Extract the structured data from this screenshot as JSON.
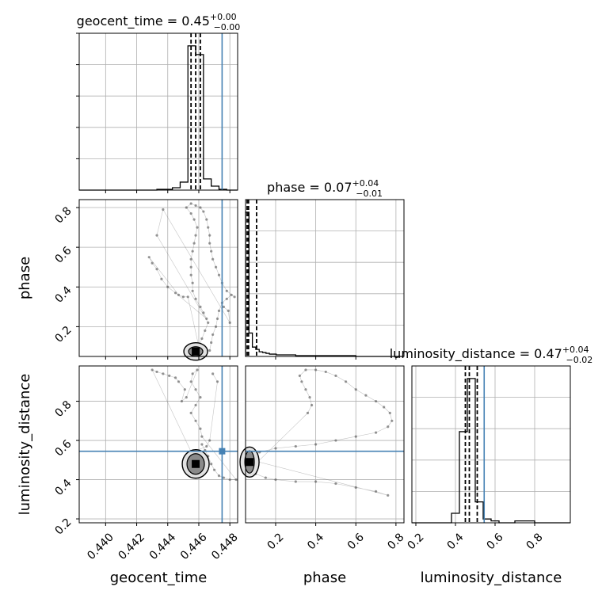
{
  "chart_data": {
    "type": "corner",
    "parameters": [
      "geocent_time",
      "phase",
      "luminosity_distance"
    ],
    "truths": {
      "geocent_time": 0.4475,
      "phase": null,
      "luminosity_distance": 0.545
    },
    "diagonal_titles": [
      {
        "param": "geocent_time",
        "text": "geocent_time = 0.45",
        "sup": "+0.00",
        "sub": "−0.00"
      },
      {
        "param": "phase",
        "text": "phase = 0.07",
        "sup": "+0.04",
        "sub": "−0.01"
      },
      {
        "param": "luminosity_distance",
        "text": "luminosity_distance = 0.47",
        "sup": "+0.04",
        "sub": "−0.02"
      }
    ],
    "axis_labels": {
      "x": [
        "geocent_time",
        "phase",
        "luminosity_distance"
      ],
      "y": [
        "phase",
        "luminosity_distance"
      ]
    },
    "ranges": {
      "geocent_time": [
        0.4383,
        0.4485
      ],
      "phase": [
        0.05,
        0.84
      ],
      "luminosity_distance": [
        0.18,
        0.98
      ]
    },
    "ticks": {
      "geocent_time": [
        "0.440",
        "0.442",
        "0.444",
        "0.446",
        "0.448"
      ],
      "phase": [
        "0.2",
        "0.4",
        "0.6",
        "0.8"
      ],
      "luminosity_distance": [
        "0.2",
        "0.4",
        "0.6",
        "0.8"
      ]
    },
    "histograms": {
      "geocent_time": {
        "edges": [
          0.4383,
          0.4433,
          0.4438,
          0.4443,
          0.4448,
          0.4453,
          0.4458,
          0.4463,
          0.4468,
          0.4473,
          0.4478,
          0.4485
        ],
        "counts": [
          0,
          1,
          1,
          3,
          10,
          181,
          170,
          14,
          5,
          1,
          0
        ]
      },
      "phase": {
        "edges": [
          0.05,
          0.067,
          0.084,
          0.101,
          0.118,
          0.135,
          0.152,
          0.169,
          0.186,
          0.203,
          0.22,
          0.3,
          0.4,
          0.5,
          0.6,
          0.7,
          0.84
        ],
        "counts": [
          185,
          30,
          12,
          9,
          6,
          5,
          4,
          3,
          3,
          2,
          2,
          1,
          1,
          1,
          0,
          0
        ]
      },
      "luminosity_distance": {
        "edges": [
          0.18,
          0.38,
          0.42,
          0.46,
          0.5,
          0.54,
          0.58,
          0.62,
          0.7,
          0.8,
          0.9,
          0.98
        ],
        "counts": [
          0,
          5,
          48,
          76,
          11,
          2,
          1,
          0,
          1,
          0,
          0
        ]
      }
    },
    "quantile_lines": {
      "geocent_time": [
        0.4455,
        0.4458,
        0.4461
      ],
      "phase": [
        0.058,
        0.065,
        0.105
      ],
      "luminosity_distance": [
        0.45,
        0.47,
        0.51
      ]
    },
    "scatter": {
      "phase_vs_geocent_time": [
        [
          0.4467,
          0.08
        ],
        [
          0.4468,
          0.12
        ],
        [
          0.4469,
          0.16
        ],
        [
          0.4471,
          0.2
        ],
        [
          0.4472,
          0.24
        ],
        [
          0.4473,
          0.28
        ],
        [
          0.4475,
          0.32
        ],
        [
          0.4478,
          0.34
        ],
        [
          0.4481,
          0.36
        ],
        [
          0.4483,
          0.35
        ],
        [
          0.4478,
          0.38
        ],
        [
          0.4475,
          0.42
        ],
        [
          0.4473,
          0.46
        ],
        [
          0.4471,
          0.5
        ],
        [
          0.4469,
          0.54
        ],
        [
          0.4468,
          0.58
        ],
        [
          0.4467,
          0.62
        ],
        [
          0.4467,
          0.66
        ],
        [
          0.4466,
          0.7
        ],
        [
          0.4465,
          0.74
        ],
        [
          0.4463,
          0.78
        ],
        [
          0.4461,
          0.8
        ],
        [
          0.4458,
          0.81
        ],
        [
          0.4455,
          0.82
        ],
        [
          0.4452,
          0.8
        ],
        [
          0.4455,
          0.77
        ],
        [
          0.4457,
          0.74
        ],
        [
          0.4459,
          0.7
        ],
        [
          0.4458,
          0.66
        ],
        [
          0.4457,
          0.62
        ],
        [
          0.4456,
          0.58
        ],
        [
          0.4455,
          0.54
        ],
        [
          0.4455,
          0.5
        ],
        [
          0.4455,
          0.46
        ],
        [
          0.4456,
          0.42
        ],
        [
          0.4456,
          0.38
        ],
        [
          0.4458,
          0.34
        ],
        [
          0.4461,
          0.3
        ],
        [
          0.4463,
          0.27
        ],
        [
          0.4465,
          0.24
        ],
        [
          0.4445,
          0.37
        ],
        [
          0.444,
          0.4
        ],
        [
          0.4436,
          0.44
        ],
        [
          0.4433,
          0.49
        ],
        [
          0.443,
          0.52
        ],
        [
          0.4428,
          0.55
        ],
        [
          0.4447,
          0.36
        ],
        [
          0.445,
          0.35
        ],
        [
          0.4453,
          0.35
        ],
        [
          0.446,
          0.1
        ],
        [
          0.4462,
          0.14
        ],
        [
          0.4464,
          0.18
        ],
        [
          0.4466,
          0.22
        ],
        [
          0.4433,
          0.66
        ],
        [
          0.4437,
          0.79
        ],
        [
          0.448,
          0.22
        ],
        [
          0.4479,
          0.28
        ],
        [
          0.4476,
          0.3
        ]
      ],
      "luminosity_distance_vs_geocent_time": [
        [
          0.4462,
          0.58
        ],
        [
          0.4464,
          0.55
        ],
        [
          0.4466,
          0.52
        ],
        [
          0.4468,
          0.48
        ],
        [
          0.447,
          0.45
        ],
        [
          0.4473,
          0.42
        ],
        [
          0.4476,
          0.41
        ],
        [
          0.448,
          0.4
        ],
        [
          0.4484,
          0.4
        ],
        [
          0.4462,
          0.62
        ],
        [
          0.4461,
          0.66
        ],
        [
          0.4458,
          0.7
        ],
        [
          0.4455,
          0.74
        ],
        [
          0.4458,
          0.78
        ],
        [
          0.4461,
          0.82
        ],
        [
          0.4458,
          0.86
        ],
        [
          0.4455,
          0.9
        ],
        [
          0.4456,
          0.94
        ],
        [
          0.4459,
          0.96
        ],
        [
          0.4452,
          0.82
        ],
        [
          0.4449,
          0.8
        ],
        [
          0.4451,
          0.86
        ],
        [
          0.4447,
          0.9
        ],
        [
          0.4445,
          0.92
        ],
        [
          0.4441,
          0.93
        ],
        [
          0.4437,
          0.94
        ],
        [
          0.4433,
          0.95
        ],
        [
          0.443,
          0.96
        ],
        [
          0.446,
          0.46
        ],
        [
          0.4458,
          0.5
        ],
        [
          0.4456,
          0.54
        ],
        [
          0.4465,
          0.57
        ],
        [
          0.4467,
          0.6
        ],
        [
          0.4472,
          0.9
        ],
        [
          0.4469,
          0.94
        ]
      ],
      "luminosity_distance_vs_phase": [
        [
          0.07,
          0.52
        ],
        [
          0.12,
          0.54
        ],
        [
          0.2,
          0.56
        ],
        [
          0.3,
          0.57
        ],
        [
          0.4,
          0.58
        ],
        [
          0.5,
          0.6
        ],
        [
          0.6,
          0.62
        ],
        [
          0.7,
          0.64
        ],
        [
          0.76,
          0.67
        ],
        [
          0.78,
          0.7
        ],
        [
          0.77,
          0.74
        ],
        [
          0.74,
          0.77
        ],
        [
          0.7,
          0.8
        ],
        [
          0.65,
          0.83
        ],
        [
          0.6,
          0.86
        ],
        [
          0.55,
          0.9
        ],
        [
          0.5,
          0.93
        ],
        [
          0.45,
          0.95
        ],
        [
          0.4,
          0.96
        ],
        [
          0.35,
          0.96
        ],
        [
          0.32,
          0.93
        ],
        [
          0.33,
          0.9
        ],
        [
          0.35,
          0.86
        ],
        [
          0.37,
          0.82
        ],
        [
          0.38,
          0.78
        ],
        [
          0.36,
          0.74
        ],
        [
          0.07,
          0.45
        ],
        [
          0.1,
          0.43
        ],
        [
          0.15,
          0.41
        ],
        [
          0.2,
          0.4
        ],
        [
          0.3,
          0.39
        ],
        [
          0.4,
          0.39
        ],
        [
          0.5,
          0.38
        ],
        [
          0.6,
          0.36
        ],
        [
          0.7,
          0.34
        ],
        [
          0.76,
          0.32
        ],
        [
          0.08,
          0.5
        ],
        [
          0.06,
          0.47
        ]
      ]
    },
    "grid": true,
    "colors": {
      "truth": "#4682b4",
      "line": "#000000",
      "scatter": "#555555",
      "grid": "#b0b0b0"
    }
  }
}
